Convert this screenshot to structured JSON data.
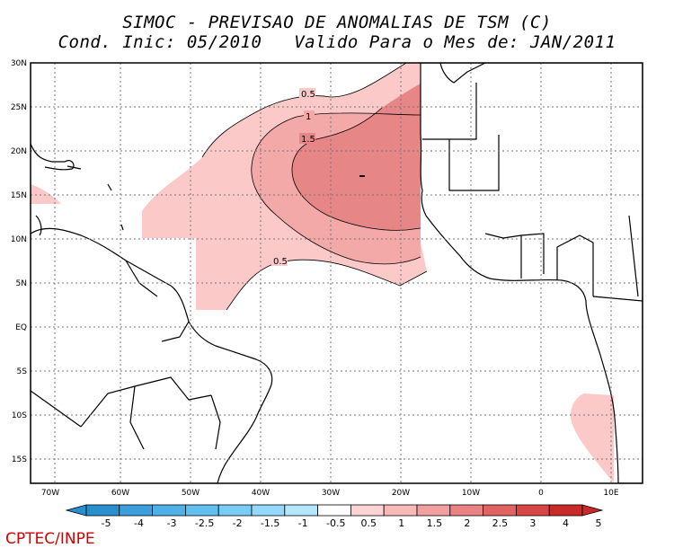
{
  "title_line1": "SIMOC - PREVISAO DE ANOMALIAS DE TSM (C)",
  "title_line2": "Cond. Inic: 05/2010   Valido Para o Mes de: JAN/2011",
  "credit": "CPTEC/INPE",
  "map": {
    "lon_range": [
      -72,
      14
    ],
    "lat_range": [
      -18,
      30
    ],
    "lat_ticks": [
      "30N",
      "25N",
      "20N",
      "15N",
      "10N",
      "5N",
      "EQ",
      "5S",
      "10S",
      "15S"
    ],
    "lon_ticks": [
      "70W",
      "60W",
      "50W",
      "40W",
      "30W",
      "20W",
      "10W",
      "0",
      "10E"
    ],
    "contour_labels": [
      "0.5",
      "1",
      "1.5",
      "0.5"
    ]
  },
  "colorbar": {
    "labels": [
      "-5",
      "-4",
      "-3",
      "-2.5",
      "-2",
      "-1.5",
      "-1",
      "-0.5",
      "0.5",
      "1",
      "1.5",
      "2",
      "2.5",
      "3",
      "4",
      "5"
    ],
    "colors": [
      "#2a8fce",
      "#3ba0dc",
      "#4fb1e8",
      "#63bff0",
      "#7accf5",
      "#94d9f9",
      "#b4e7fc",
      "#ffffff",
      "#fdd4d4",
      "#f9b9b9",
      "#f29f9f",
      "#ea8484",
      "#e26363",
      "#d94646",
      "#c92a2a"
    ]
  }
}
